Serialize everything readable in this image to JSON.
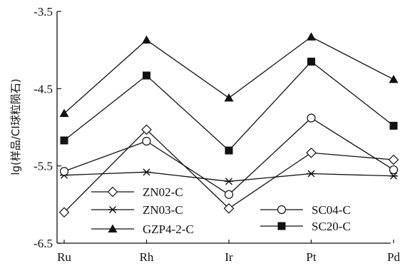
{
  "chart_data": {
    "type": "line",
    "title": "",
    "xlabel": "",
    "ylabel": "lg(样品/CI球粒陨石)",
    "categories": [
      "Ru",
      "Rh",
      "Ir",
      "Pt",
      "Pd"
    ],
    "ylim": [
      -6.5,
      -3.5
    ],
    "yticks": [
      -3.5,
      -4.5,
      -5.5,
      -6.5
    ],
    "ytick_labels": [
      "-3.5",
      "-4.5",
      "-5.5",
      "-6.5"
    ],
    "grid": false,
    "series": [
      {
        "name": "ZN02-C",
        "marker": "diamond-open",
        "values": [
          -6.1,
          -5.03,
          -6.05,
          -5.33,
          -5.42
        ]
      },
      {
        "name": "ZN03-C",
        "marker": "star",
        "values": [
          -5.62,
          -5.58,
          -5.7,
          -5.6,
          -5.63
        ]
      },
      {
        "name": "GZP4-2-C",
        "marker": "triangle-filled",
        "values": [
          -4.82,
          -3.87,
          -4.62,
          -3.83,
          -4.38
        ]
      },
      {
        "name": "SC04-C",
        "marker": "circle-open",
        "values": [
          -5.57,
          -5.18,
          -5.87,
          -4.88,
          -5.55
        ]
      },
      {
        "name": "SC20-C",
        "marker": "square-filled",
        "values": [
          -5.17,
          -4.33,
          -5.3,
          -4.15,
          -4.98
        ]
      }
    ]
  }
}
